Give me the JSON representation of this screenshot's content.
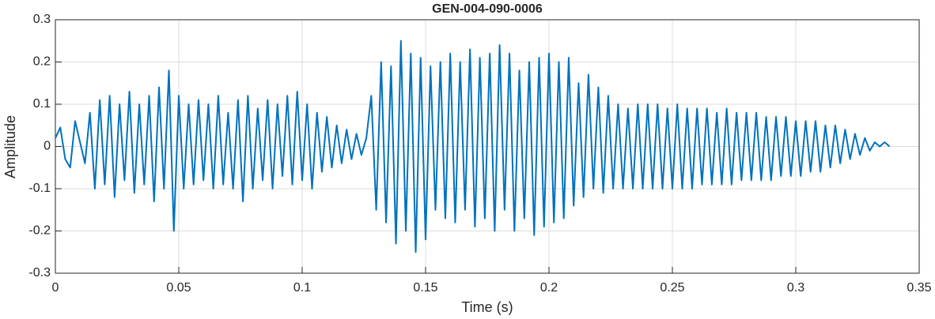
{
  "chart_data": {
    "type": "line",
    "title": "GEN-004-090-0006",
    "xlabel": "Time (s)",
    "ylabel": "Amplitude",
    "xlim": [
      0,
      0.35
    ],
    "xticks": [
      0,
      0.05,
      0.1,
      0.15,
      0.2,
      0.25,
      0.3,
      0.35
    ],
    "ylim": [
      -0.3,
      0.3
    ],
    "yticks": [
      -0.3,
      -0.2,
      -0.1,
      0,
      0.1,
      0.2,
      0.3
    ],
    "grid": true,
    "x": [
      0,
      0.002,
      0.004,
      0.006,
      0.008,
      0.01,
      0.012,
      0.014,
      0.016,
      0.018,
      0.02,
      0.022,
      0.024,
      0.026,
      0.028,
      0.03,
      0.032,
      0.034,
      0.036,
      0.038,
      0.04,
      0.042,
      0.044,
      0.046,
      0.048,
      0.05,
      0.052,
      0.054,
      0.056,
      0.058,
      0.06,
      0.062,
      0.064,
      0.066,
      0.068,
      0.07,
      0.072,
      0.074,
      0.076,
      0.078,
      0.08,
      0.082,
      0.084,
      0.086,
      0.088,
      0.09,
      0.092,
      0.094,
      0.096,
      0.098,
      0.1,
      0.102,
      0.104,
      0.106,
      0.108,
      0.11,
      0.112,
      0.114,
      0.116,
      0.118,
      0.12,
      0.122,
      0.124,
      0.126,
      0.128,
      0.13,
      0.132,
      0.134,
      0.136,
      0.138,
      0.14,
      0.142,
      0.144,
      0.146,
      0.148,
      0.15,
      0.152,
      0.154,
      0.156,
      0.158,
      0.16,
      0.162,
      0.164,
      0.166,
      0.168,
      0.17,
      0.172,
      0.174,
      0.176,
      0.178,
      0.18,
      0.182,
      0.184,
      0.186,
      0.188,
      0.19,
      0.192,
      0.194,
      0.196,
      0.198,
      0.2,
      0.202,
      0.204,
      0.206,
      0.208,
      0.21,
      0.212,
      0.214,
      0.216,
      0.218,
      0.22,
      0.222,
      0.224,
      0.226,
      0.228,
      0.23,
      0.232,
      0.234,
      0.236,
      0.238,
      0.24,
      0.242,
      0.244,
      0.246,
      0.248,
      0.25,
      0.252,
      0.254,
      0.256,
      0.258,
      0.26,
      0.262,
      0.264,
      0.266,
      0.268,
      0.27,
      0.272,
      0.274,
      0.276,
      0.278,
      0.28,
      0.282,
      0.284,
      0.286,
      0.288,
      0.29,
      0.292,
      0.294,
      0.296,
      0.298,
      0.3,
      0.302,
      0.304,
      0.306,
      0.308,
      0.31,
      0.312,
      0.314,
      0.316,
      0.318,
      0.32,
      0.322,
      0.324,
      0.326,
      0.328,
      0.33,
      0.332,
      0.334,
      0.336,
      0.338
    ],
    "series": [
      {
        "color": "#0072bd",
        "values": [
          0.02,
          0.045,
          -0.03,
          -0.05,
          0.06,
          0.01,
          -0.04,
          0.08,
          -0.1,
          0.11,
          -0.09,
          0.12,
          -0.12,
          0.1,
          -0.08,
          0.13,
          -0.11,
          0.1,
          -0.09,
          0.12,
          -0.13,
          0.14,
          -0.1,
          0.18,
          -0.2,
          0.12,
          -0.1,
          0.1,
          -0.09,
          0.11,
          -0.08,
          0.1,
          -0.1,
          0.12,
          -0.09,
          0.08,
          -0.1,
          0.11,
          -0.13,
          0.12,
          -0.1,
          0.09,
          -0.08,
          0.11,
          -0.1,
          0.1,
          -0.07,
          0.12,
          -0.09,
          0.13,
          -0.08,
          0.1,
          -0.1,
          0.08,
          -0.06,
          0.07,
          -0.05,
          0.05,
          -0.04,
          0.04,
          -0.03,
          0.03,
          -0.02,
          0.02,
          0.12,
          -0.15,
          0.2,
          -0.18,
          0.19,
          -0.23,
          0.25,
          -0.2,
          0.22,
          -0.25,
          0.21,
          -0.22,
          0.19,
          -0.15,
          0.2,
          -0.17,
          0.22,
          -0.18,
          0.2,
          -0.15,
          0.23,
          -0.19,
          0.21,
          -0.17,
          0.22,
          -0.2,
          0.24,
          -0.15,
          0.22,
          -0.2,
          0.18,
          -0.17,
          0.2,
          -0.21,
          0.21,
          -0.19,
          0.22,
          -0.18,
          0.2,
          -0.17,
          0.21,
          -0.14,
          0.15,
          -0.12,
          0.17,
          -0.1,
          0.14,
          -0.11,
          0.12,
          -0.1,
          0.1,
          -0.1,
          0.09,
          -0.1,
          0.1,
          -0.1,
          0.1,
          -0.1,
          0.1,
          -0.1,
          0.09,
          -0.1,
          0.1,
          -0.1,
          0.09,
          -0.1,
          0.09,
          -0.09,
          0.09,
          -0.09,
          0.08,
          -0.09,
          0.09,
          -0.09,
          0.08,
          -0.08,
          0.08,
          -0.08,
          0.08,
          -0.08,
          0.07,
          -0.08,
          0.07,
          -0.07,
          0.07,
          -0.07,
          0.06,
          -0.07,
          0.06,
          -0.06,
          0.06,
          -0.06,
          0.05,
          -0.05,
          0.05,
          -0.04,
          0.04,
          -0.03,
          0.03,
          -0.02,
          0.02,
          -0.01,
          0.01,
          0,
          0.01,
          0
        ]
      }
    ]
  }
}
